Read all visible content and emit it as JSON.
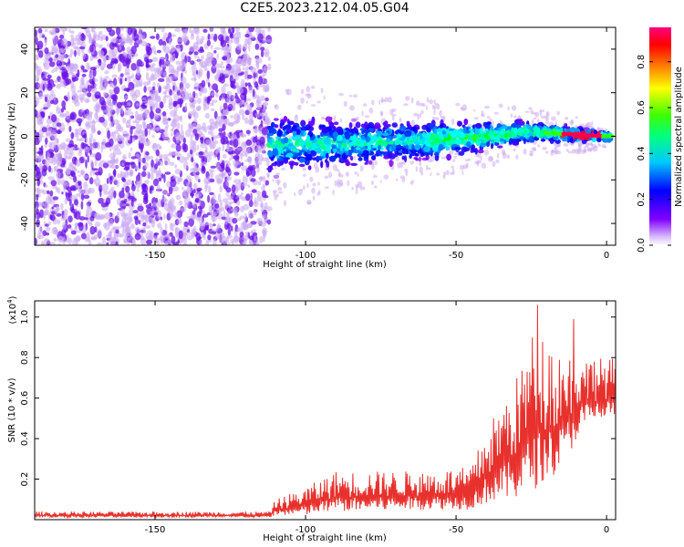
{
  "title": "C2E5.2023.212.04.05.G04",
  "colors": {
    "trace": "#e8302c",
    "frame": "#000000",
    "speckle_light": "#c9a5f2",
    "speckle_dark": "#6a10e8"
  },
  "chart_data": [
    {
      "type": "heatmap",
      "xlabel": "Height of straight line (km)",
      "ylabel": "Frequency (Hz)",
      "xlim": [
        -190,
        3
      ],
      "ylim": [
        -50,
        50
      ],
      "xticks": [
        -150,
        -100,
        -50,
        0
      ],
      "yticks": [
        -40,
        -20,
        0,
        20,
        40
      ],
      "colorbar": {
        "label": "Normalized spectral amplitude",
        "range": [
          0,
          0.95
        ],
        "ticks": [
          "0.0",
          "0.2",
          "0.4",
          "0.6",
          "0.8"
        ],
        "tick_values": [
          0,
          0.2,
          0.4,
          0.6,
          0.8
        ],
        "colormap": [
          "#ffffff",
          "#8000ff",
          "#0000ff",
          "#00ffff",
          "#00ff00",
          "#ffff00",
          "#ff8000",
          "#ff0000",
          "#ff0080"
        ]
      },
      "features": {
        "noise_band_x": [
          -190,
          -112
        ],
        "noise_band_y": [
          -50,
          50
        ],
        "signal_center_freq": [
          {
            "x": -110,
            "y": -4
          },
          {
            "x": -80,
            "y": -3
          },
          {
            "x": -50,
            "y": -1
          },
          {
            "x": -25,
            "y": 2
          },
          {
            "x": 0,
            "y": 0
          }
        ],
        "signal_halfwidth_freq": [
          {
            "x": -110,
            "y": 12
          },
          {
            "x": -60,
            "y": 8
          },
          {
            "x": -20,
            "y": 4
          },
          {
            "x": 0,
            "y": 2
          }
        ],
        "peak_amplitude_x": [
          -15,
          -2
        ]
      }
    },
    {
      "type": "line",
      "xlabel": "Height of straight line (km)",
      "ylabel": "SNR (10 * v/v)",
      "y_multiplier": "(x10",
      "y_multiplier_exp": "4",
      "y_multiplier_close": ")",
      "xlim": [
        -190,
        3
      ],
      "ylim": [
        0,
        1.08
      ],
      "xticks": [
        -150,
        -100,
        -50,
        0
      ],
      "yticks": [
        0.2,
        0.4,
        0.6,
        0.8,
        1.0
      ],
      "series": [
        {
          "envelope": [
            {
              "x": -190,
              "lo": 0.01,
              "hi": 0.04
            },
            {
              "x": -112,
              "lo": 0.01,
              "hi": 0.04
            },
            {
              "x": -110,
              "lo": 0.02,
              "hi": 0.1
            },
            {
              "x": -100,
              "lo": 0.02,
              "hi": 0.16
            },
            {
              "x": -90,
              "lo": 0.04,
              "hi": 0.24
            },
            {
              "x": -80,
              "lo": 0.04,
              "hi": 0.24
            },
            {
              "x": -60,
              "lo": 0.05,
              "hi": 0.24
            },
            {
              "x": -45,
              "lo": 0.05,
              "hi": 0.26
            },
            {
              "x": -40,
              "lo": 0.08,
              "hi": 0.45
            },
            {
              "x": -30,
              "lo": 0.1,
              "hi": 0.7
            },
            {
              "x": -24,
              "lo": 0.15,
              "hi": 0.95
            },
            {
              "x": -15,
              "lo": 0.25,
              "hi": 0.85
            },
            {
              "x": -8,
              "lo": 0.45,
              "hi": 0.8
            },
            {
              "x": 3,
              "lo": 0.5,
              "hi": 0.8
            }
          ],
          "peaks": [
            {
              "x": -23,
              "y": 1.06
            },
            {
              "x": -11,
              "y": 0.99
            },
            {
              "x": -4,
              "y": 0.78
            }
          ]
        }
      ]
    }
  ]
}
